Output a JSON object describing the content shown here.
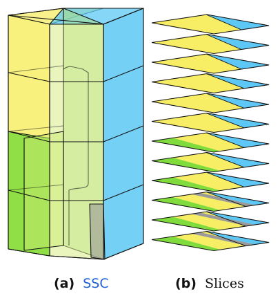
{
  "captions": {
    "a": {
      "label": "(a)",
      "text": "SSC"
    },
    "b": {
      "label": "(b)",
      "text": "Slices"
    }
  },
  "colors": {
    "yellow": "#f7ee66",
    "blue": "#5dc8f5",
    "green": "#7fdc3c",
    "gray": "#9a9a9a",
    "edge": "#111111",
    "link": "#1f5fd6"
  },
  "slices": {
    "count": 12,
    "rows": [
      {
        "green": false,
        "gray": false
      },
      {
        "green": false,
        "gray": false
      },
      {
        "green": false,
        "gray": false
      },
      {
        "green": false,
        "gray": false
      },
      {
        "green": false,
        "gray": false
      },
      {
        "green": false,
        "gray": false
      },
      {
        "green": true,
        "gray": false
      },
      {
        "green": true,
        "gray": false
      },
      {
        "green": true,
        "gray": false
      },
      {
        "green": true,
        "gray": true
      },
      {
        "green": true,
        "gray": true
      },
      {
        "green": true,
        "gray": true
      }
    ]
  }
}
